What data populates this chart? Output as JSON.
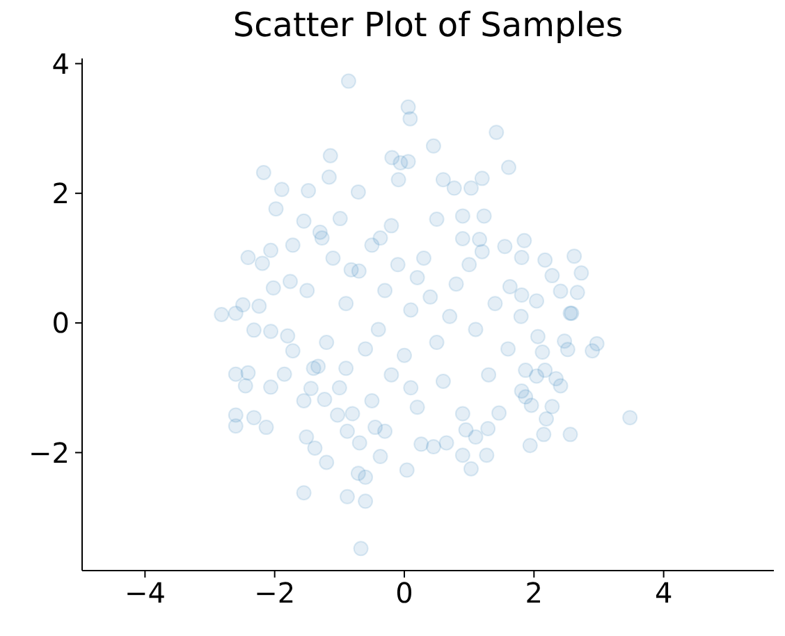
{
  "chart_data": {
    "type": "scatter",
    "title": "Scatter Plot of Samples",
    "marker": "circle",
    "grid": false,
    "xlim": [
      -4.97,
      5.7
    ],
    "ylim": [
      -3.82,
      4.08
    ],
    "xticks": [
      -4,
      -2,
      0,
      2,
      4
    ],
    "yticks": [
      -2,
      0,
      2,
      4
    ],
    "series": [
      {
        "color": "#1f77b4",
        "x": [
          -0.86,
          0.06,
          0.09,
          -1.14,
          -1.16,
          -2.17,
          -1.89,
          -1.98,
          -1.48,
          -0.19,
          -0.06,
          0.06,
          -0.09,
          -1.55,
          -2.41,
          -2.19,
          -2.06,
          -1.72,
          -2.82,
          -2.6,
          -2.49,
          -2.24,
          -2.02,
          -1.76,
          -0.71,
          -0.99,
          -1.27,
          -0.37,
          -0.82,
          1.42,
          0.45,
          1.61,
          0.77,
          1.03,
          1.2,
          0.6,
          1.85,
          1.55,
          1.81,
          2.17,
          2.62,
          2.73,
          2.28,
          2.41,
          2.67,
          2.04,
          1.81,
          1.63,
          2.58,
          1.23,
          0.9,
          1.16,
          -2.6,
          -2.41,
          -2.45,
          -2.6,
          -2.6,
          -2.32,
          -2.13,
          -2.06,
          -1.85,
          -1.55,
          -1.51,
          -1.38,
          -1.2,
          -1.55,
          -0.88,
          -0.6,
          -0.67,
          -0.6,
          -0.71,
          -0.88,
          -0.69,
          -0.37,
          0.04,
          -1.44,
          -1.23,
          -1.03,
          -0.45,
          -0.3,
          -1.72,
          -2.32,
          -2.06,
          -1.33,
          2.56,
          2.9,
          2.97,
          2.47,
          2.52,
          3.48,
          2.56,
          1.94,
          2.15,
          2.19,
          2.28,
          1.96,
          1.87,
          1.81,
          2.41,
          2.34,
          2.04,
          2.17,
          2.13,
          2.06,
          1.27,
          1.03,
          0.9,
          1.29,
          1.1,
          0.95,
          1.46,
          0.65,
          0.45,
          0.26,
          1.87,
          0.1,
          -0.3,
          0.5,
          -0.6,
          0.8,
          0.3,
          -0.9,
          1.1,
          -0.2,
          0.6,
          -1.2,
          1.4,
          -0.5,
          0.9,
          -1.0,
          0.2,
          1.3,
          -1.5,
          -0.1,
          0.4,
          -0.7,
          1.6,
          -1.4,
          0.7,
          -0.4,
          0.0,
          1.0,
          -0.8,
          0.5,
          -1.1,
          1.8,
          -1.8,
          0.2,
          -0.2,
          0.9,
          -0.5,
          1.2,
          -1.3,
          0.1,
          -0.9
        ],
        "values": [
          3.73,
          3.33,
          3.15,
          2.58,
          2.25,
          2.32,
          2.06,
          1.76,
          2.04,
          2.55,
          2.47,
          2.49,
          2.21,
          1.57,
          1.01,
          0.92,
          1.12,
          1.2,
          0.13,
          0.15,
          0.28,
          0.26,
          0.54,
          0.64,
          2.02,
          1.61,
          1.31,
          1.31,
          0.82,
          2.94,
          2.73,
          2.4,
          2.08,
          2.08,
          2.23,
          2.21,
          1.27,
          1.18,
          1.01,
          0.97,
          1.03,
          0.77,
          0.73,
          0.49,
          0.47,
          0.34,
          0.43,
          0.56,
          0.15,
          1.65,
          1.65,
          1.29,
          -0.79,
          -0.77,
          -0.97,
          -1.42,
          -1.59,
          -1.46,
          -1.61,
          -0.99,
          -0.79,
          -1.2,
          -1.76,
          -1.93,
          -2.15,
          -2.62,
          -2.68,
          -2.75,
          -3.48,
          -2.38,
          -2.32,
          -1.67,
          -1.85,
          -2.06,
          -2.27,
          -1.01,
          -1.18,
          -1.42,
          -1.61,
          -1.67,
          -0.43,
          -0.11,
          -0.13,
          -0.67,
          0.15,
          -0.43,
          -0.32,
          -0.28,
          -0.41,
          -1.46,
          -1.72,
          -1.89,
          -1.72,
          -1.48,
          -1.29,
          -1.27,
          -1.14,
          -1.05,
          -0.97,
          -0.86,
          -0.82,
          -0.73,
          -0.45,
          -0.21,
          -2.04,
          -2.25,
          -2.04,
          -1.63,
          -1.76,
          -1.65,
          -1.39,
          -1.85,
          -1.91,
          -1.87,
          -0.73,
          0.2,
          0.5,
          -0.3,
          -0.4,
          0.6,
          1.0,
          0.3,
          -0.1,
          -0.8,
          -0.9,
          -0.3,
          0.3,
          1.2,
          1.3,
          -1.0,
          -1.3,
          -0.8,
          0.5,
          0.9,
          0.4,
          0.8,
          -0.4,
          -0.7,
          0.1,
          -0.1,
          -0.5,
          0.9,
          -1.4,
          1.6,
          1.0,
          0.1,
          -0.2,
          0.7,
          1.5,
          -1.4,
          -1.2,
          1.1,
          1.4,
          -1.0,
          -0.7
        ]
      }
    ]
  }
}
